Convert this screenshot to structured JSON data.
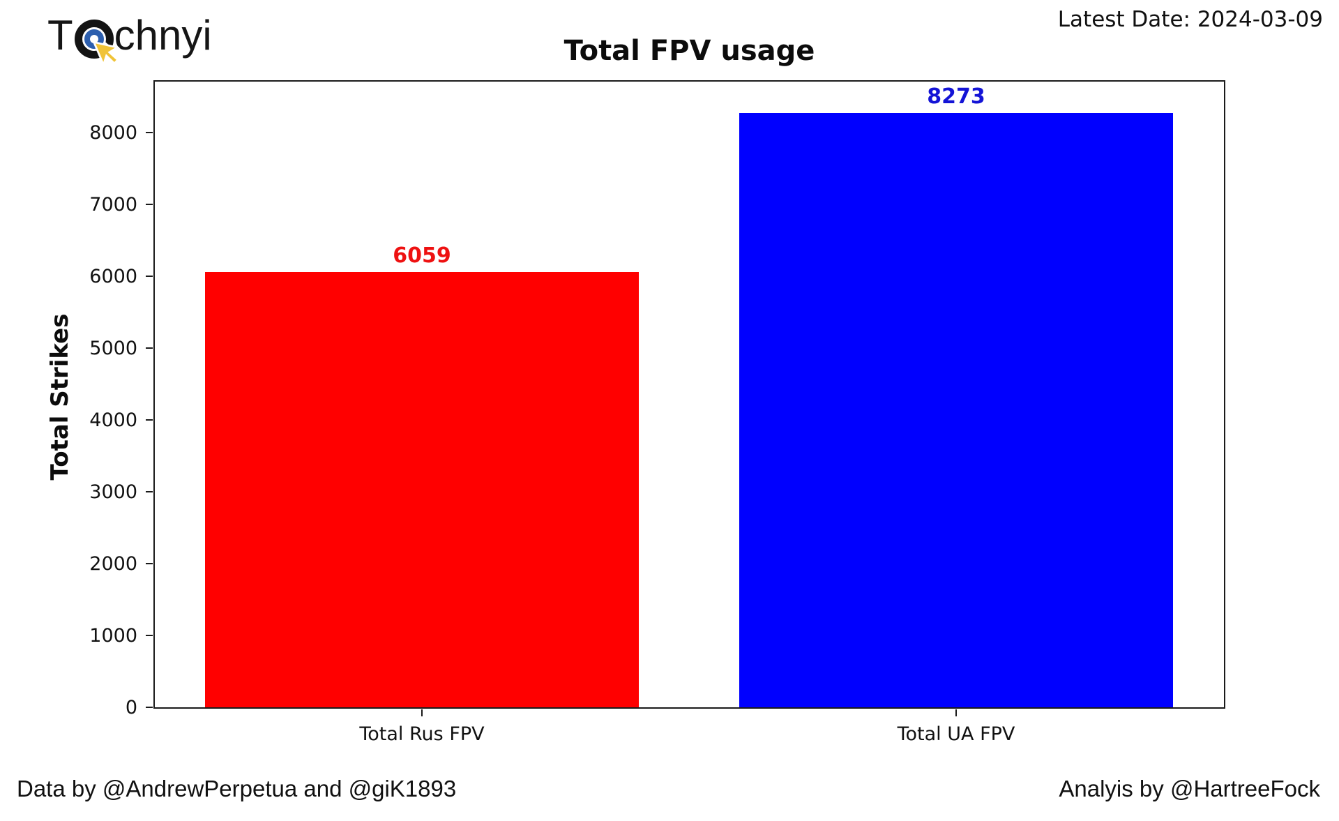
{
  "header": {
    "logo_prefix": "T",
    "logo_suffix": "chnyi",
    "latest_date": "Latest Date: 2024-03-09"
  },
  "chart_data": {
    "type": "bar",
    "title": "Total FPV usage",
    "xlabel": "",
    "ylabel": "Total Strikes",
    "categories": [
      "Total Rus FPV",
      "Total UA FPV"
    ],
    "values": [
      6059,
      8273
    ],
    "bar_colors": [
      "#ff0000",
      "#0000ff"
    ],
    "value_label_colors": [
      "#ee1111",
      "#1414d6"
    ],
    "yticks": [
      0,
      1000,
      2000,
      3000,
      4000,
      5000,
      6000,
      7000,
      8000
    ],
    "ylim": [
      0,
      8720
    ],
    "grid": false,
    "legend": "none",
    "spine_color": "#1a1a1a"
  },
  "footer": {
    "left": "Data by @AndrewPerpetua and @giK1893",
    "right": "Analyis by @HartreeFock"
  }
}
